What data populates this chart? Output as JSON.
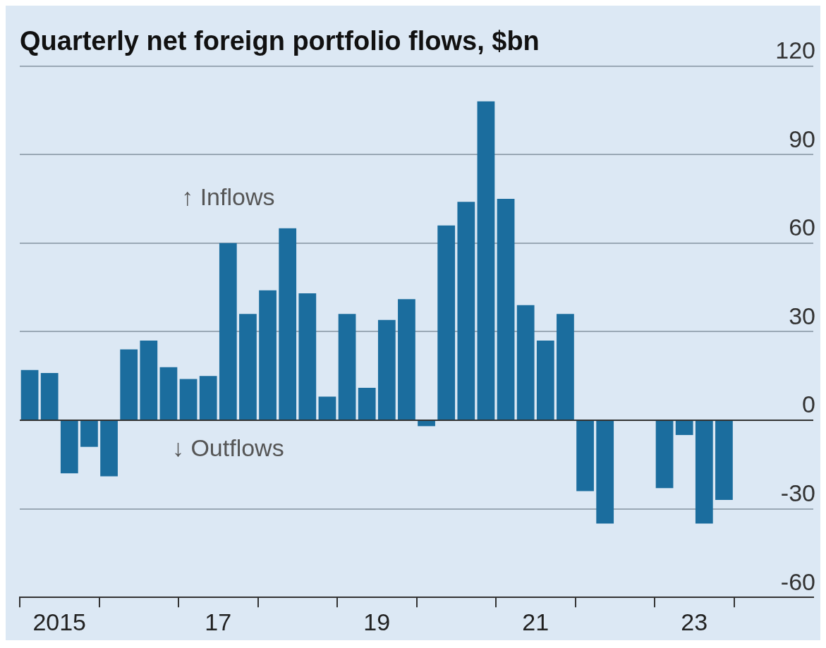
{
  "chart_data": {
    "type": "bar",
    "title": "Quarterly net foreign portfolio flows, $bn",
    "categories": [
      null,
      "2015",
      null,
      null,
      null,
      null,
      null,
      null,
      null,
      "17",
      null,
      null,
      null,
      null,
      null,
      null,
      null,
      "19",
      null,
      null,
      null,
      null,
      null,
      null,
      null,
      "21",
      null,
      null,
      null,
      null,
      null,
      null,
      null,
      "23",
      null,
      null,
      null,
      null,
      null,
      null
    ],
    "values": [
      17,
      16,
      -18,
      -9,
      -19,
      24,
      27,
      18,
      14,
      15,
      60,
      36,
      44,
      65,
      43,
      8,
      36,
      11,
      34,
      41,
      -2,
      66,
      74,
      108,
      75,
      39,
      27,
      36,
      -24,
      -35,
      null,
      null,
      -23,
      -5,
      -35,
      -27,
      null,
      null,
      null,
      null
    ],
    "color": "#1b6d9e",
    "ylim": [
      -60,
      120
    ],
    "yticks": [
      -60,
      -30,
      0,
      30,
      60,
      90,
      120
    ],
    "grid": "y",
    "annotations": [
      "↑ Inflows",
      "↓ Outflows"
    ]
  }
}
